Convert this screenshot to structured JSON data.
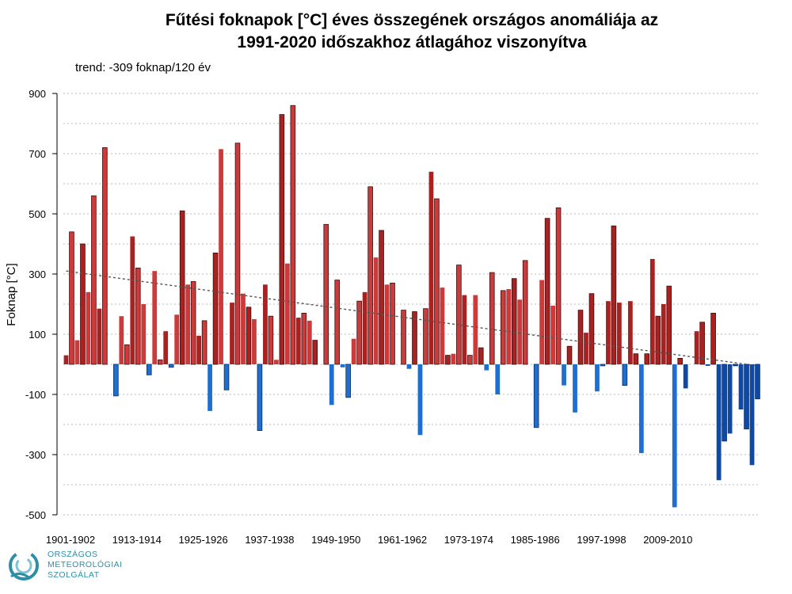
{
  "title": {
    "line1": "Fűtési foknapok [°C] éves összegének országos anomáliája az",
    "line2": "1991-2020 időszakhoz átlagához viszonyítva"
  },
  "subtitle": "trend: -309 foknap/120 év",
  "logo": {
    "line1": "ORSZÁGOS",
    "line2": "METEOROLÓGIAI",
    "line3": "SZOLGÁLAT"
  },
  "colors": {
    "positive_light": "#cc3b3b",
    "positive_dark": "#a82222",
    "negative_light": "#1f6fd1",
    "negative_dark": "#0e4aa5",
    "trend": "#555555",
    "grid": "#bbbbbb"
  },
  "chart_data": {
    "type": "bar",
    "title": "Fűtési foknapok [°C] éves összegének országos anomáliája az 1991-2020 időszakhoz átlagához viszonyítva",
    "ylabel": "Foknap [°C]",
    "xlabel": "",
    "ylim": [
      -500,
      900
    ],
    "yticks": [
      900,
      700,
      500,
      300,
      100,
      -100,
      -300,
      -500
    ],
    "grid": "horizontal dotted",
    "x_tick_labels": [
      "1901-1902",
      "1913-1914",
      "1925-1926",
      "1937-1938",
      "1949-1950",
      "1961-1962",
      "1973-1974",
      "1985-1986",
      "1997-1998",
      "2009-2010"
    ],
    "first_season": "1901-1902",
    "trend": {
      "total_change": -309,
      "start_value": 310,
      "end_value": -5
    },
    "values": [
      30,
      440,
      80,
      400,
      240,
      560,
      185,
      720,
      0,
      -105,
      160,
      65,
      425,
      320,
      200,
      -35,
      310,
      15,
      110,
      -10,
      165,
      510,
      265,
      275,
      95,
      145,
      -155,
      370,
      715,
      -85,
      205,
      735,
      235,
      190,
      150,
      -220,
      265,
      160,
      15,
      830,
      335,
      860,
      155,
      170,
      145,
      80,
      0,
      465,
      -135,
      280,
      -10,
      -110,
      85,
      210,
      240,
      590,
      355,
      445,
      265,
      270,
      0,
      180,
      -15,
      175,
      -235,
      185,
      640,
      550,
      255,
      30,
      35,
      330,
      230,
      30,
      230,
      55,
      -20,
      305,
      -100,
      245,
      250,
      285,
      215,
      345,
      0,
      -210,
      280,
      485,
      195,
      520,
      -70,
      60,
      -160,
      180,
      105,
      235,
      -90,
      -5,
      210,
      460,
      205,
      -70,
      210,
      35,
      -295,
      35,
      350,
      160,
      200,
      260,
      -475,
      20,
      -80,
      0,
      110,
      140,
      -5,
      170,
      -385,
      -255,
      -230,
      -5,
      -150,
      -215,
      -335,
      -115
    ]
  }
}
